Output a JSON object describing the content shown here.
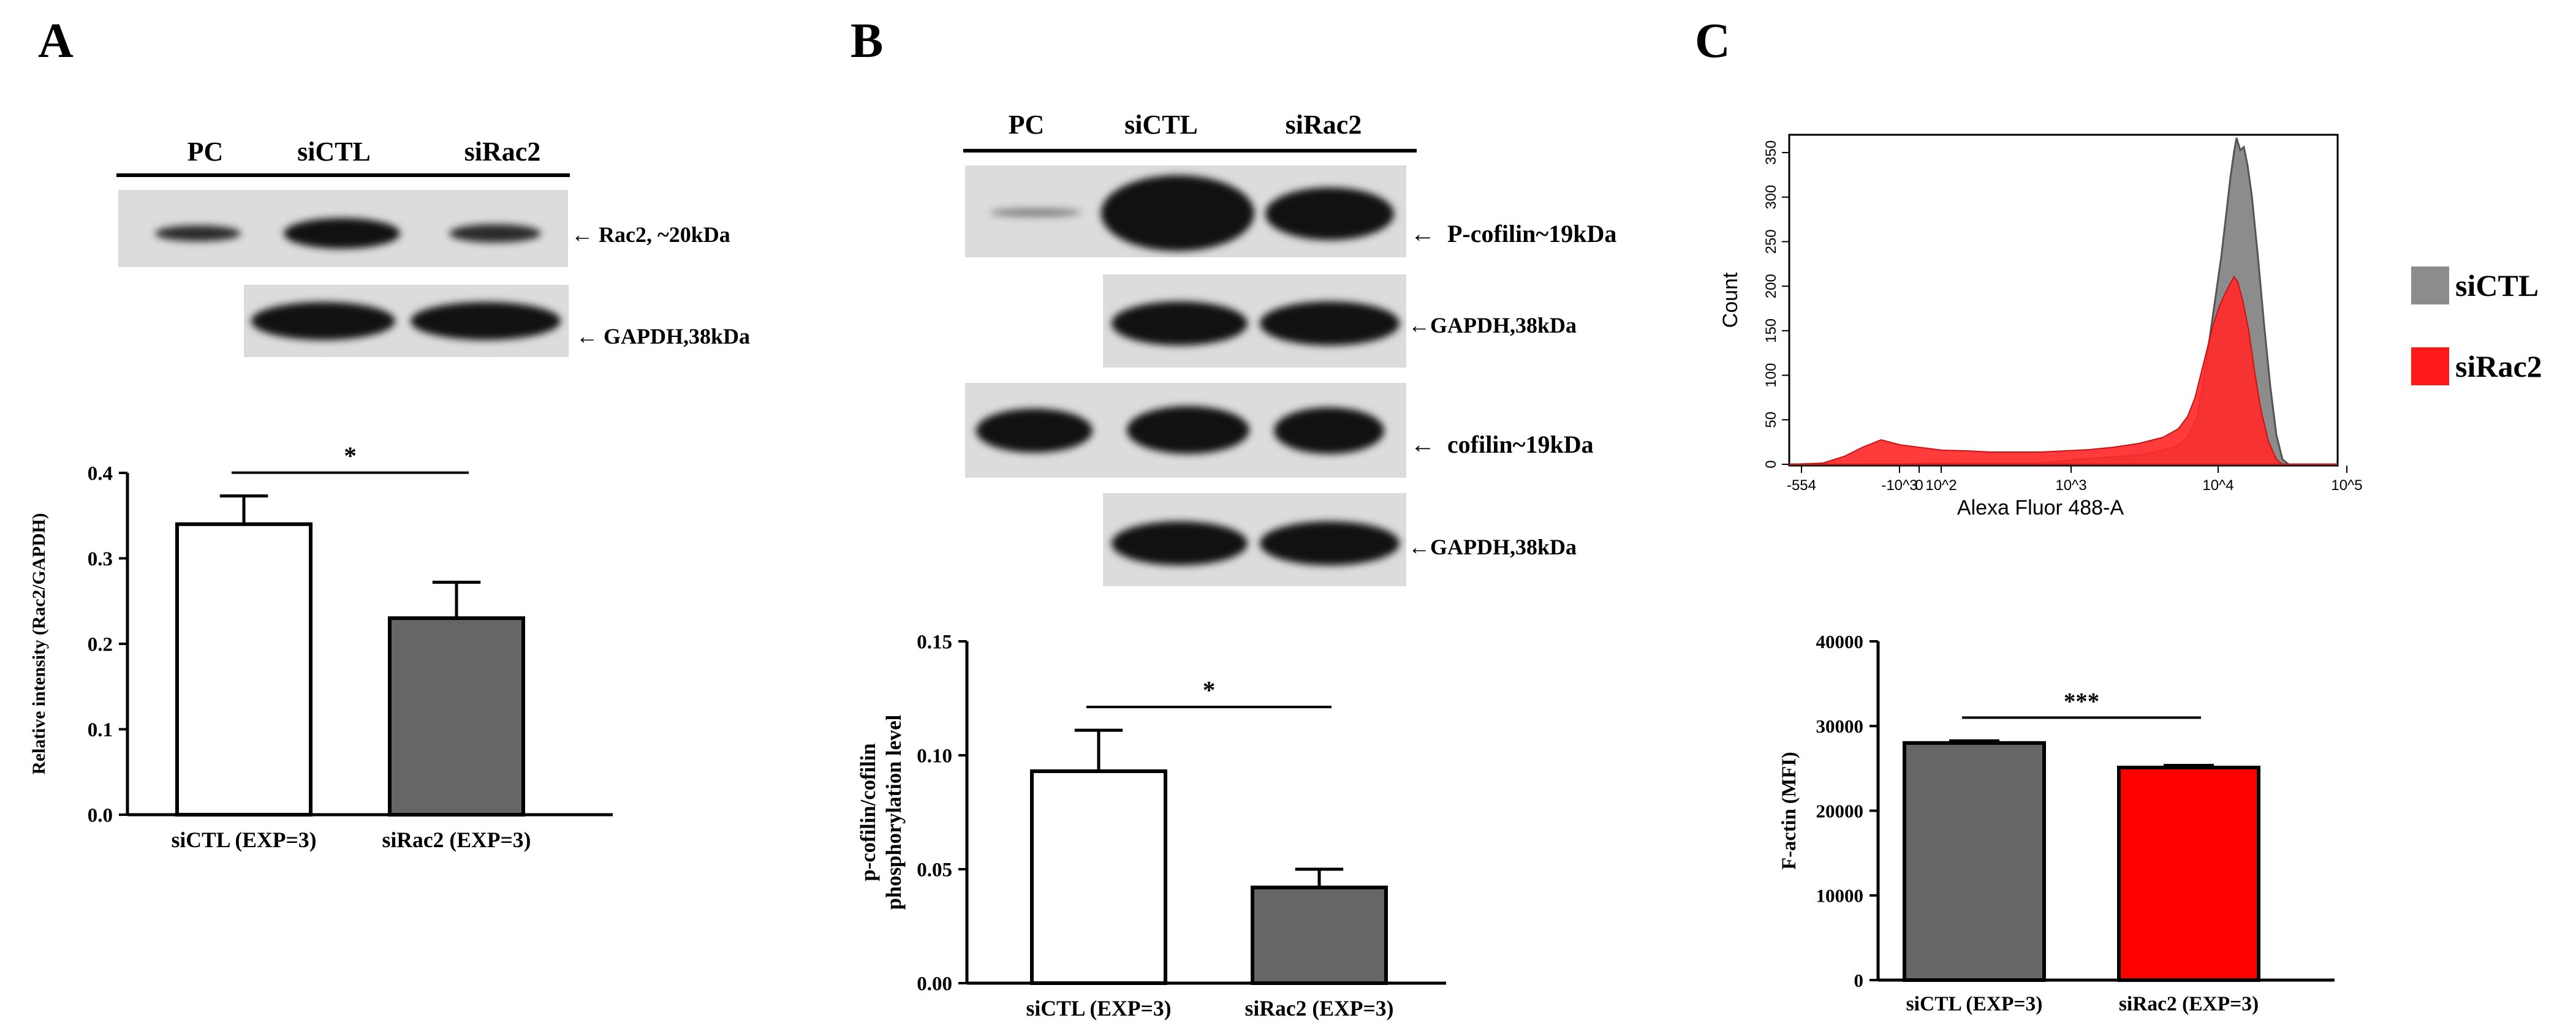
{
  "panels": {
    "A": {
      "letter": "A",
      "lanes": [
        "PC",
        "siCTL",
        "siRac2"
      ],
      "blots": [
        "Rac2, ~20kDa",
        "GAPDH,38kDa"
      ],
      "chart_index": 0
    },
    "B": {
      "letter": "B",
      "lanes": [
        "PC",
        "siCTL",
        "siRac2"
      ],
      "blots": [
        "P-cofilin~19kDa",
        "GAPDH,38kDa",
        "cofilin~19kDa",
        "GAPDH,38kDa"
      ],
      "chart_index": 1
    },
    "C": {
      "letter": "C",
      "flow": {
        "ylabel": "Count",
        "xlabel": "Alexa Fluor 488-A",
        "yticks": [
          "0",
          "50",
          "100",
          "150",
          "200",
          "250",
          "300",
          "350"
        ],
        "xticks": [
          "-554",
          "-10^3",
          "0",
          "10^2",
          "10^3",
          "10^4",
          "10^5"
        ],
        "legend": [
          {
            "name": "siCTL",
            "color": "#8c8c8c"
          },
          {
            "name": "siRac2",
            "color": "#ff1a1a"
          }
        ]
      },
      "chart_index": 2
    }
  },
  "chart_data": [
    {
      "type": "bar",
      "categories": [
        "siCTL (EXP=3)",
        "siRac2 (EXP=3)"
      ],
      "values": [
        0.34,
        0.23
      ],
      "errors": [
        0.033,
        0.042
      ],
      "colors": [
        "#ffffff",
        "#666666"
      ],
      "ylabel": "Relative intensity (Rac2/GAPDH)",
      "ylim": [
        0,
        0.4
      ],
      "yticks": [
        "0.0",
        "0.1",
        "0.2",
        "0.3",
        "0.4"
      ],
      "significance": "*"
    },
    {
      "type": "bar",
      "categories": [
        "siCTL (EXP=3)",
        "siRac2 (EXP=3)"
      ],
      "values": [
        0.093,
        0.042
      ],
      "errors": [
        0.018,
        0.008
      ],
      "colors": [
        "#ffffff",
        "#666666"
      ],
      "ylabel": "p-cofilin/cofilin",
      "ylabel2": "phosphorylation level",
      "ylim": [
        0,
        0.15
      ],
      "yticks": [
        "0.00",
        "0.05",
        "0.10",
        "0.15"
      ],
      "significance": "*"
    },
    {
      "type": "bar",
      "categories": [
        "siCTL (EXP=3)",
        "siRac2 (EXP=3)"
      ],
      "values": [
        28000,
        25100
      ],
      "errors": [
        250,
        250
      ],
      "colors": [
        "#666666",
        "#ff0000"
      ],
      "ylabel": "F-actin (MFI)",
      "ylim": [
        0,
        40000
      ],
      "yticks": [
        "0",
        "10000",
        "20000",
        "30000",
        "40000"
      ],
      "significance": "***"
    }
  ]
}
